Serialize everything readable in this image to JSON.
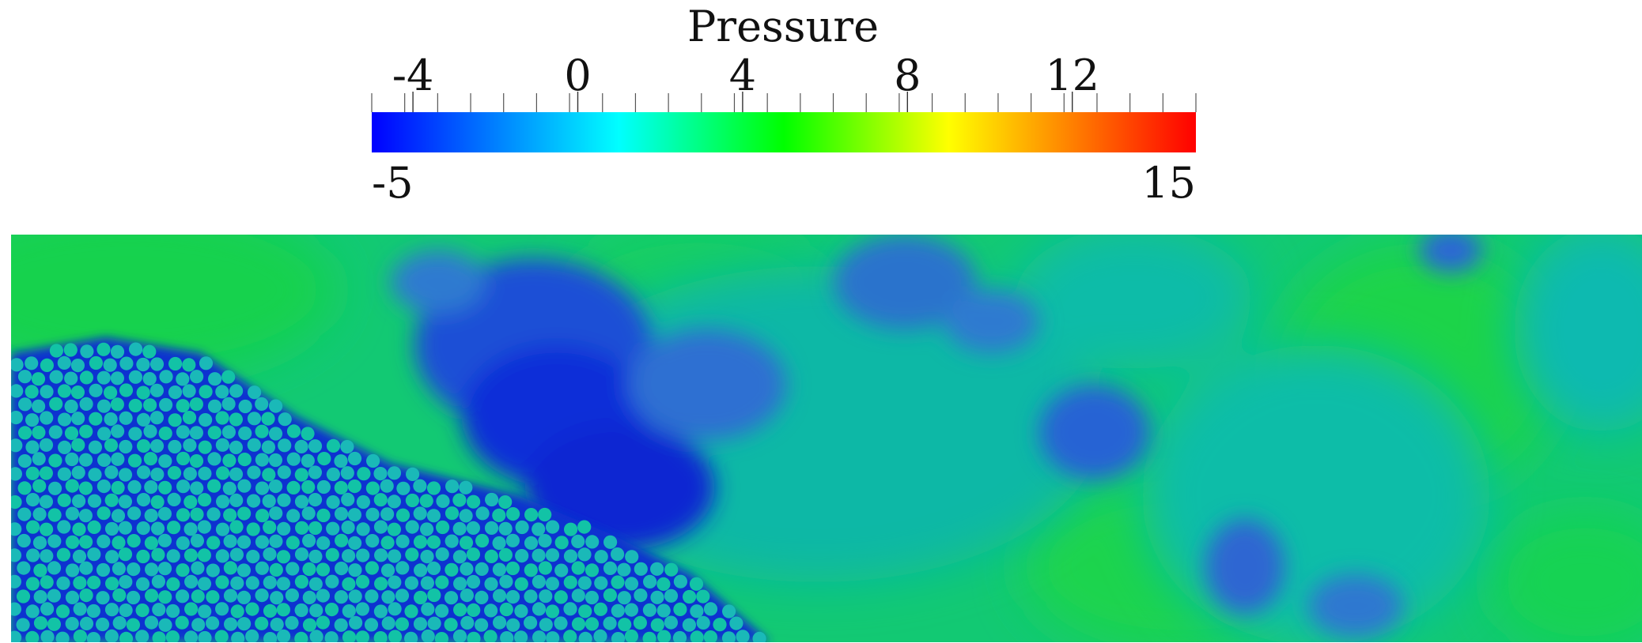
{
  "chart_data": {
    "type": "heatmap",
    "title": "",
    "colorbar": {
      "title": "Pressure",
      "min": -5,
      "max": 15,
      "min_label": "-5",
      "max_label": "15",
      "major_ticks": [
        {
          "value": -4,
          "label": "-4"
        },
        {
          "value": 0,
          "label": "0"
        },
        {
          "value": 4,
          "label": "4"
        },
        {
          "value": 8,
          "label": "8"
        },
        {
          "value": 12,
          "label": "12"
        }
      ],
      "minor_tick_step": 0.8,
      "colormap": [
        "#0000ff",
        "#0055ff",
        "#00aaff",
        "#00ffff",
        "#00ff80",
        "#00ff00",
        "#80ff00",
        "#ffff00",
        "#ffaa00",
        "#ff5500",
        "#ff0000"
      ],
      "placement": "top"
    },
    "field": {
      "background_color": "#12c973",
      "features": [
        {
          "kind": "low-pressure region",
          "location": "center-left",
          "approx_value": -3
        },
        {
          "kind": "low-pressure region",
          "location": "center",
          "approx_value": -2
        },
        {
          "kind": "particle bed",
          "location": "bottom-left",
          "particle_value": 1
        }
      ]
    }
  }
}
